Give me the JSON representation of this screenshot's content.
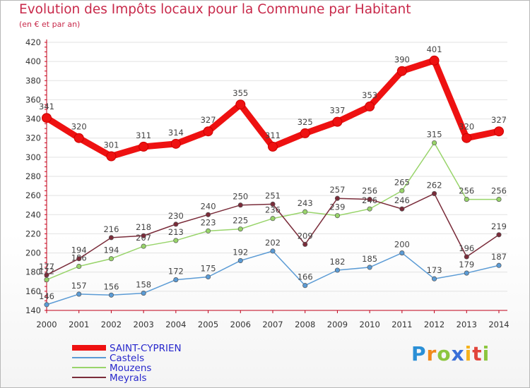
{
  "title": "Evolution des Impôts locaux pour la Commune par Habitant",
  "subtitle": "(en € et par an)",
  "logo": {
    "letters": [
      "P",
      "r",
      "o",
      "x",
      "i",
      "t",
      "i"
    ],
    "colors": [
      "#2a8fd6",
      "#f18a1c",
      "#8cc63e",
      "#3a6fd8",
      "#f6b21c",
      "#e2453c",
      "#8cc63e"
    ]
  },
  "chart_data": {
    "type": "line",
    "title": "Evolution des Impôts locaux pour la Commune par Habitant",
    "subtitle": "(en € et par an)",
    "x": [
      "2000",
      "2001",
      "2002",
      "2003",
      "2004",
      "2005",
      "2006",
      "2007",
      "2008",
      "2009",
      "2010",
      "2011",
      "2012",
      "2013",
      "2014"
    ],
    "ylim": [
      140,
      420
    ],
    "yticks": [
      140,
      160,
      180,
      200,
      220,
      240,
      260,
      280,
      300,
      320,
      340,
      360,
      380,
      400,
      420
    ],
    "grid": "horizontal",
    "legend": "bottom-left",
    "series": [
      {
        "name": "Castels",
        "color": "#5b9bd5",
        "values": [
          146,
          157,
          156,
          158,
          172,
          175,
          192,
          202,
          166,
          182,
          185,
          200,
          173,
          179,
          187
        ]
      },
      {
        "name": "Mouzens",
        "color": "#98d46a",
        "values": [
          172,
          186,
          194,
          207,
          213,
          223,
          225,
          236,
          243,
          239,
          246,
          265,
          315,
          256,
          256
        ]
      },
      {
        "name": "Meyrals",
        "color": "#7a2c3a",
        "values": [
          177,
          194,
          216,
          218,
          230,
          240,
          250,
          251,
          209,
          257,
          256,
          246,
          262,
          196,
          219
        ]
      },
      {
        "name": "SAINT-CYPRIEN",
        "color": "#ee1111",
        "values": [
          341,
          320,
          301,
          311,
          314,
          327,
          355,
          311,
          325,
          337,
          353,
          390,
          401,
          320,
          327
        ]
      }
    ]
  }
}
